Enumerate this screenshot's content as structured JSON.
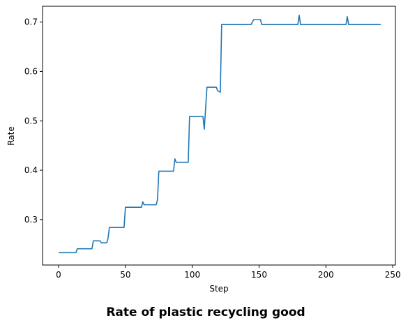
{
  "chart_data": {
    "type": "line",
    "title": "Rate of plastic recycling good",
    "xlabel": "Step",
    "ylabel": "Rate",
    "xlim": [
      -12,
      252
    ],
    "ylim": [
      0.208,
      0.732
    ],
    "xticks": [
      0,
      50,
      100,
      150,
      200,
      250
    ],
    "xtick_labels": [
      "0",
      "50",
      "100",
      "150",
      "200",
      "250"
    ],
    "yticks": [
      0.3,
      0.4,
      0.5,
      0.6,
      0.7
    ],
    "ytick_labels": [
      "0.3",
      "0.4",
      "0.5",
      "0.6",
      "0.7"
    ],
    "grid": false,
    "series": [
      {
        "color": "#1f77b4",
        "x": [
          0,
          13,
          14,
          25,
          26,
          31,
          32,
          36,
          37,
          38,
          49,
          50,
          62,
          63,
          64,
          73,
          74,
          75,
          86,
          87,
          88,
          97,
          98,
          108,
          109,
          110,
          111,
          118,
          119,
          121,
          122,
          144,
          146,
          151,
          152,
          179,
          180,
          181,
          215,
          216,
          217,
          241
        ],
        "y": [
          0.233,
          0.233,
          0.241,
          0.241,
          0.257,
          0.257,
          0.253,
          0.253,
          0.262,
          0.284,
          0.284,
          0.325,
          0.325,
          0.336,
          0.33,
          0.33,
          0.34,
          0.398,
          0.398,
          0.423,
          0.416,
          0.416,
          0.509,
          0.509,
          0.483,
          0.525,
          0.568,
          0.568,
          0.561,
          0.558,
          0.695,
          0.695,
          0.705,
          0.705,
          0.695,
          0.695,
          0.714,
          0.695,
          0.695,
          0.711,
          0.695,
          0.695
        ]
      }
    ]
  }
}
